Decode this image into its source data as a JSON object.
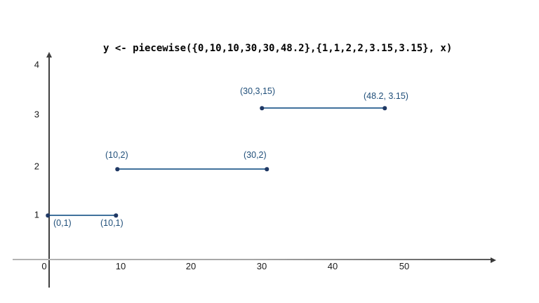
{
  "chart_data": {
    "type": "line",
    "title": "y <- piecewise({0,10,10,30,30,48.2},{1,1,2,2,3.15,3.15}, x)",
    "xlabel": "",
    "ylabel": "",
    "xlim": [
      0,
      63
    ],
    "ylim": [
      0,
      4.3
    ],
    "grid": false,
    "legend": false,
    "segments": [
      {
        "x": [
          0,
          10
        ],
        "y": [
          1,
          1
        ],
        "endpoint_labels": [
          "(0,1)",
          "(10,1)"
        ]
      },
      {
        "x": [
          10,
          30
        ],
        "y": [
          2,
          2
        ],
        "endpoint_labels": [
          "(10,2)",
          "(30,2)"
        ]
      },
      {
        "x": [
          30,
          48.2
        ],
        "y": [
          3.15,
          3.15
        ],
        "endpoint_labels": [
          "(30,3,15)",
          "(48.2, 3.15)"
        ]
      }
    ],
    "x_tick_labels": [
      "0",
      "10",
      "20",
      "30",
      "40",
      "50"
    ],
    "y_tick_labels": [
      "4",
      "3",
      "2",
      "1"
    ],
    "point_labels": [
      "(0,1)",
      "(10,1)",
      "(10,2)",
      "(30,2)",
      "(30,3,15)",
      "(48.2, 3.15)"
    ],
    "colors": {
      "segment_line": "#41719C",
      "point_marker": "#1F3864",
      "point_label": "#1F4E79",
      "x_axis": "#A6A6A6",
      "y_axis": "#404040",
      "tick_label": "#1A1A1A",
      "title": "#000000",
      "background": "#FFFFFF"
    }
  }
}
